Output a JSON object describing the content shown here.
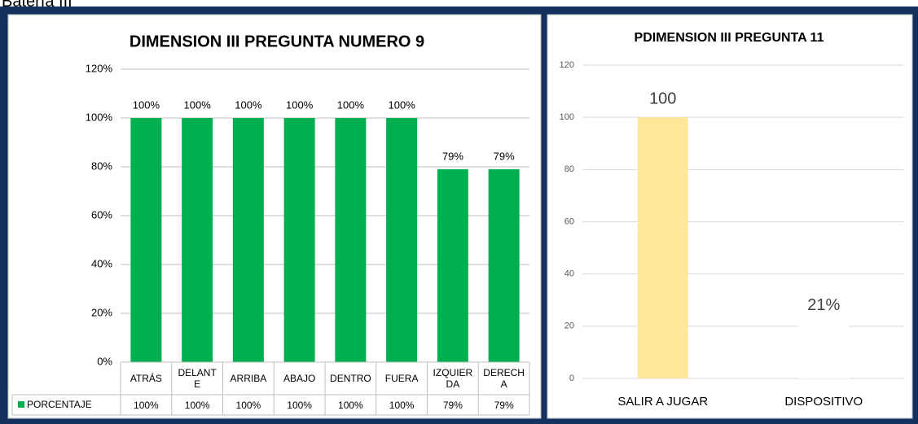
{
  "header": {
    "title": "Batería III"
  },
  "chart_data": [
    {
      "type": "bar",
      "title": "DIMENSION III PREGUNTA NUMERO 9",
      "categories": [
        "ATRÁS",
        "DELANTE",
        "ARRIBA",
        "ABAJO",
        "DENTRO",
        "FUERA",
        "IZQUIERDA",
        "DERECHA"
      ],
      "series": [
        {
          "name": "PORCENTAJE",
          "color": "#00b050",
          "values": [
            100,
            100,
            100,
            100,
            100,
            100,
            79,
            79
          ],
          "value_labels": [
            "100%",
            "100%",
            "100%",
            "100%",
            "100%",
            "100%",
            "79%",
            "79%"
          ]
        }
      ],
      "ylim": [
        0,
        120
      ],
      "yticks": [
        {
          "value": 0,
          "label": "0%"
        },
        {
          "value": 20,
          "label": "20%"
        },
        {
          "value": 40,
          "label": "40%"
        },
        {
          "value": 60,
          "label": "60%"
        },
        {
          "value": 80,
          "label": "80%"
        },
        {
          "value": 100,
          "label": "100%"
        },
        {
          "value": 120,
          "label": "120%"
        }
      ],
      "grid": true,
      "data_table": true
    },
    {
      "type": "bar",
      "title": "PDIMENSION III PREGUNTA 11",
      "categories": [
        "SALIR A JUGAR",
        "DISPOSITIVO"
      ],
      "values": [
        100,
        21
      ],
      "value_labels": [
        "100",
        "21%"
      ],
      "colors": [
        "#ffe699",
        "#ffffff"
      ],
      "ylim": [
        0,
        120
      ],
      "yticks": [
        0,
        20,
        40,
        60,
        80,
        100,
        120
      ],
      "grid": true
    }
  ]
}
